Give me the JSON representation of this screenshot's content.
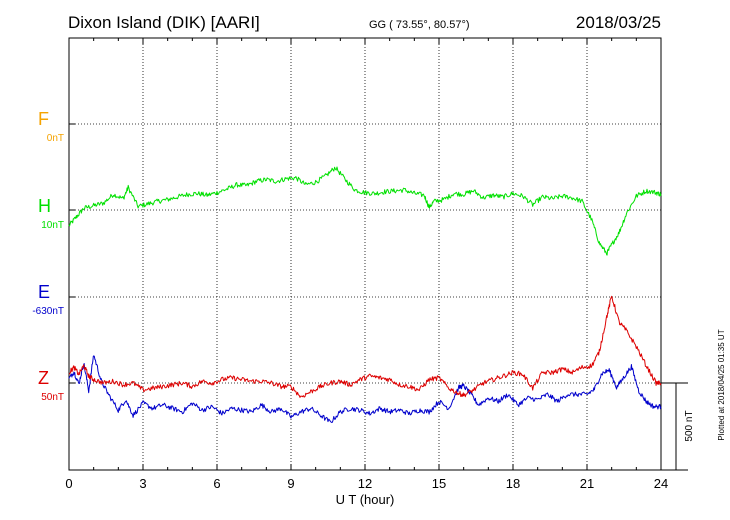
{
  "header": {
    "station": "Dixon Island (DIK)  [AARI]",
    "coords": "GG ( 73.55°,  80.57°)",
    "date": "2018/03/25"
  },
  "footer": {
    "plotted_note": "Plotted at 2018/04/25 01:35 UT"
  },
  "colors": {
    "F": "#f5a300",
    "H": "#00e000",
    "E": "#0000cc",
    "Z": "#dd0000",
    "grid": "#000000"
  },
  "chart_data": {
    "type": "line",
    "title": "Dixon Island (DIK)  [AARI]",
    "xlabel": "U T (hour)",
    "xlim": [
      0,
      24
    ],
    "xticks": [
      0,
      3,
      6,
      9,
      12,
      15,
      18,
      21,
      24
    ],
    "x_tick_labels": [
      "0",
      "3",
      "6",
      "9",
      "12",
      "15",
      "18",
      "21",
      "24"
    ],
    "scale_bar_label": "500 nT",
    "grid": true,
    "series": [
      {
        "name": "F",
        "baseline_label": "0nT",
        "x": [],
        "y": []
      },
      {
        "name": "H",
        "baseline_label": "10nT",
        "x": [
          0,
          0.3,
          0.6,
          1.0,
          1.4,
          1.8,
          2.2,
          2.4,
          2.8,
          3.2,
          3.6,
          4.0,
          4.4,
          4.8,
          5.2,
          5.6,
          6.0,
          6.4,
          6.8,
          7.2,
          7.6,
          8.0,
          8.4,
          8.8,
          9.2,
          9.6,
          10.0,
          10.4,
          10.8,
          11.2,
          11.6,
          12.0,
          12.4,
          12.8,
          13.2,
          13.6,
          14.0,
          14.4,
          14.6,
          14.8,
          15.2,
          15.6,
          16.0,
          16.4,
          16.8,
          17.2,
          17.6,
          18.0,
          18.4,
          18.8,
          19.2,
          19.6,
          20.0,
          20.4,
          20.8,
          21.2,
          21.5,
          21.8,
          22.0,
          22.3,
          22.6,
          23.0,
          23.4,
          23.8,
          24.0
        ],
        "y": [
          -90,
          -40,
          10,
          25,
          40,
          90,
          65,
          130,
          20,
          35,
          50,
          60,
          75,
          90,
          95,
          85,
          100,
          120,
          145,
          140,
          165,
          175,
          165,
          180,
          185,
          145,
          160,
          195,
          245,
          175,
          115,
          100,
          95,
          105,
          110,
          115,
          95,
          85,
          15,
          50,
          60,
          95,
          90,
          110,
          70,
          85,
          75,
          95,
          80,
          30,
          75,
          65,
          80,
          70,
          50,
          -60,
          -190,
          -250,
          -200,
          -130,
          -20,
          80,
          110,
          100,
          90
        ]
      },
      {
        "name": "E",
        "baseline_label": "-630nT",
        "x": [
          0,
          0.2,
          0.4,
          0.6,
          0.8,
          1.0,
          1.3,
          1.6,
          2.0,
          2.3,
          2.6,
          3.0,
          3.4,
          3.8,
          4.2,
          4.6,
          5.0,
          5.4,
          5.8,
          6.2,
          6.6,
          7.0,
          7.4,
          7.8,
          8.2,
          8.6,
          9.0,
          9.4,
          9.8,
          10.2,
          10.6,
          11.0,
          11.4,
          11.8,
          12.2,
          12.6,
          13.0,
          13.4,
          13.8,
          14.2,
          14.6,
          15.0,
          15.4,
          15.8,
          16.0,
          16.3,
          16.6,
          17.0,
          17.4,
          17.8,
          18.2,
          18.6,
          19.0,
          19.4,
          19.8,
          20.2,
          20.6,
          21.0,
          21.3,
          21.6,
          21.9,
          22.2,
          22.5,
          22.8,
          23.1,
          23.4,
          23.7,
          24.0
        ],
        "y": [
          -470,
          -430,
          -500,
          -380,
          -540,
          -330,
          -480,
          -560,
          -650,
          -590,
          -680,
          -610,
          -640,
          -620,
          -640,
          -660,
          -610,
          -650,
          -630,
          -670,
          -640,
          -650,
          -660,
          -620,
          -660,
          -640,
          -690,
          -660,
          -640,
          -680,
          -720,
          -660,
          -640,
          -650,
          -670,
          -640,
          -660,
          -650,
          -670,
          -650,
          -660,
          -600,
          -640,
          -520,
          -510,
          -560,
          -620,
          -580,
          -600,
          -560,
          -620,
          -580,
          -590,
          -560,
          -600,
          -560,
          -560,
          -560,
          -530,
          -440,
          -420,
          -520,
          -460,
          -400,
          -540,
          -600,
          -630,
          -630
        ]
      },
      {
        "name": "Z",
        "baseline_label": "50nT",
        "x": [
          0,
          0.2,
          0.4,
          0.6,
          0.8,
          1.0,
          1.4,
          1.8,
          2.2,
          2.6,
          3.0,
          3.4,
          3.8,
          4.2,
          4.6,
          5.0,
          5.4,
          5.8,
          6.2,
          6.6,
          7.0,
          7.4,
          7.8,
          8.2,
          8.6,
          9.0,
          9.4,
          9.8,
          10.2,
          10.6,
          11.0,
          11.4,
          11.8,
          12.2,
          12.6,
          13.0,
          13.4,
          13.8,
          14.2,
          14.6,
          15.0,
          15.4,
          15.8,
          16.0,
          16.4,
          16.8,
          17.2,
          17.6,
          18.0,
          18.4,
          18.8,
          19.2,
          19.6,
          20.0,
          20.4,
          20.8,
          21.2,
          21.5,
          21.8,
          22.0,
          22.3,
          22.6,
          23.0,
          23.4,
          23.8,
          24.0
        ],
        "y": [
          60,
          90,
          50,
          100,
          40,
          20,
          0,
          10,
          -10,
          0,
          -40,
          -30,
          -20,
          -10,
          0,
          -20,
          10,
          0,
          20,
          30,
          20,
          10,
          10,
          0,
          -20,
          -20,
          -80,
          -50,
          -20,
          0,
          10,
          -10,
          20,
          40,
          30,
          20,
          -10,
          -20,
          -40,
          20,
          30,
          -30,
          -60,
          -70,
          -40,
          0,
          20,
          40,
          60,
          50,
          -30,
          60,
          60,
          80,
          60,
          90,
          100,
          180,
          380,
          500,
          350,
          300,
          210,
          100,
          0,
          0
        ]
      }
    ]
  }
}
